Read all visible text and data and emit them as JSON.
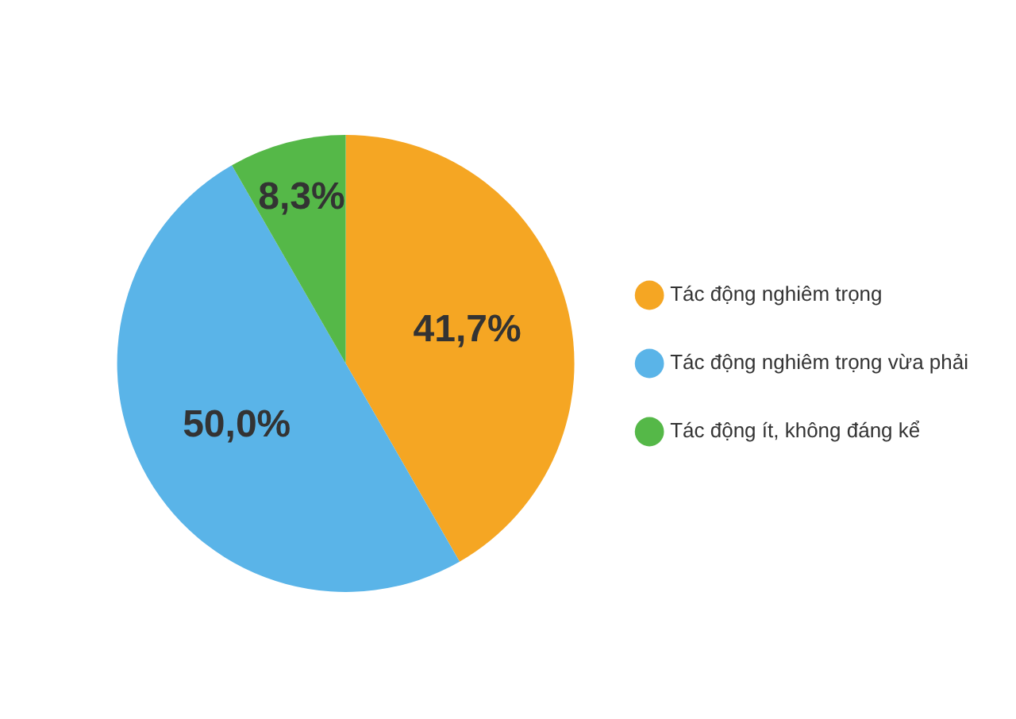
{
  "chart_data": {
    "type": "pie",
    "categories": [
      "Tác động nghiêm trọng",
      "Tác động nghiêm trọng vừa phải",
      "Tác động ít, không đáng kể"
    ],
    "values": [
      41.7,
      50.0,
      8.3
    ],
    "colors": [
      "#f5a623",
      "#5ab4e8",
      "#55b848"
    ],
    "value_labels": [
      "41,7%",
      "50,0%",
      "8,3%"
    ],
    "legend": "right"
  }
}
